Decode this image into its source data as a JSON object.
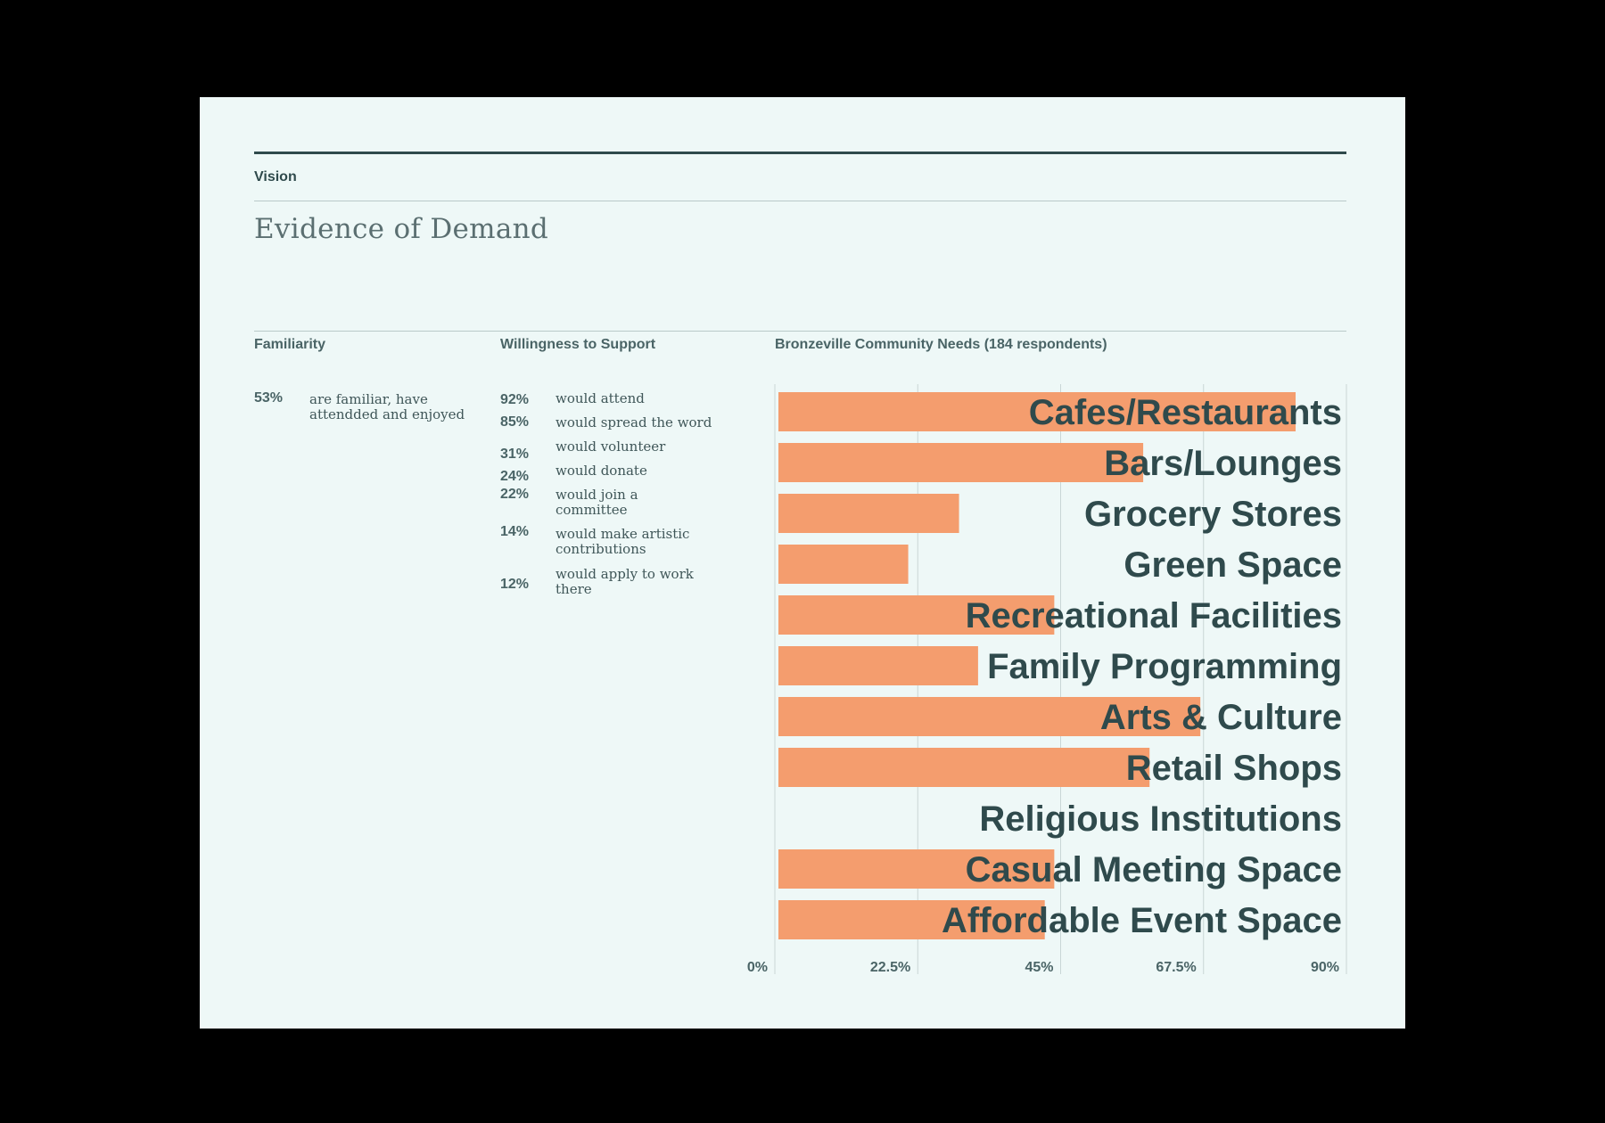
{
  "header": {
    "section": "Vision",
    "title": "Evidence of Demand"
  },
  "familiarity": {
    "heading": "Familiarity",
    "items": [
      {
        "pct": "53%",
        "text": "are familiar, have attendded and enjoyed"
      }
    ]
  },
  "willingness": {
    "heading": "Willingness to Support",
    "items": [
      {
        "pct": "92%",
        "text": "would attend"
      },
      {
        "pct": "85%",
        "text": "would spread the word"
      },
      {
        "pct": "31%",
        "text": "would volunteer"
      },
      {
        "pct": "24%",
        "text": "would donate"
      },
      {
        "pct": "22%",
        "text": "would join a committee"
      },
      {
        "pct": "14%",
        "text": "would make artistic contributions"
      },
      {
        "pct": "12%",
        "text": "would apply to work there"
      }
    ]
  },
  "chart_data": {
    "type": "bar",
    "orientation": "horizontal",
    "title": "Bronzeville Community Needs (184 respondents)",
    "categories": [
      "Cafes/Restaurants",
      "Bars/Lounges",
      "Grocery Stores",
      "Green Space",
      "Recreational Facilities",
      "Family Programming",
      "Arts & Culture",
      "Retail Shops",
      "Religious Institutions",
      "Casual Meeting Space",
      "Affordable Event Space"
    ],
    "values": [
      82,
      58,
      29,
      21,
      44,
      32,
      67,
      59,
      0,
      44,
      42.5
    ],
    "xlim": [
      0,
      90
    ],
    "xticks": [
      "0%",
      "22.5%",
      "45%",
      "67.5%",
      "90%"
    ],
    "xtick_values": [
      0,
      22.5,
      45,
      67.5,
      90
    ],
    "grid": true,
    "colors": {
      "bar": "#f49d6e",
      "label": "#2f4a4c"
    }
  }
}
